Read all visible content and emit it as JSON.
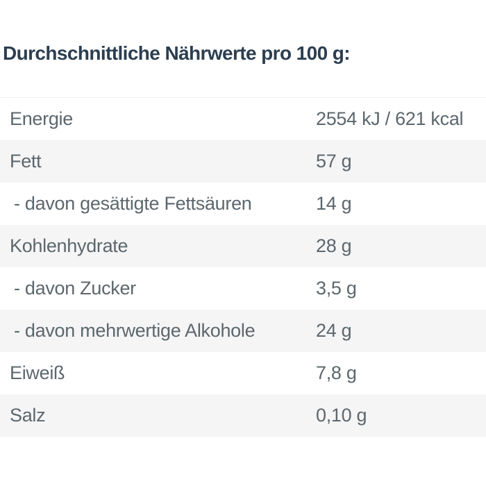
{
  "title": "Durchschnittliche Nährwerte pro 100 g:",
  "colors": {
    "background": "#ffffff",
    "title_text": "#2c3e50",
    "row_text": "#5c676d",
    "stripe": "#f5f5f6"
  },
  "table": {
    "rows": [
      {
        "label": "Energie",
        "value": "2554 kJ / 621 kcal",
        "indent": false,
        "striped": false
      },
      {
        "label": "Fett",
        "value": "57 g",
        "indent": false,
        "striped": true
      },
      {
        "label": "- davon gesättigte Fettsäuren",
        "value": "14 g",
        "indent": true,
        "striped": false
      },
      {
        "label": "Kohlenhydrate",
        "value": "28 g",
        "indent": false,
        "striped": true
      },
      {
        "label": "- davon Zucker",
        "value": "3,5 g",
        "indent": true,
        "striped": false
      },
      {
        "label": "- davon mehrwertige Alkohole",
        "value": "24 g",
        "indent": true,
        "striped": true
      },
      {
        "label": "Eiweiß",
        "value": "7,8 g",
        "indent": false,
        "striped": false
      },
      {
        "label": "Salz",
        "value": "0,10 g",
        "indent": false,
        "striped": true
      }
    ]
  }
}
